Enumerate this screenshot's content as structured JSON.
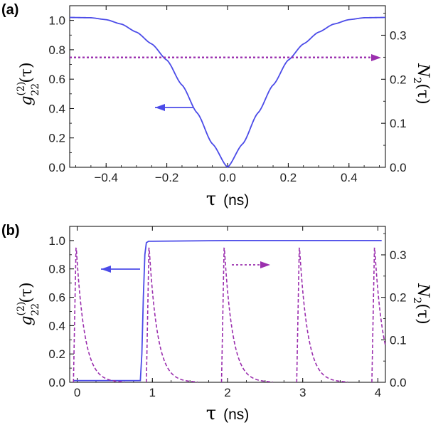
{
  "chart_data": [
    {
      "panel_label": "(a)",
      "type": "line",
      "xlabel_symbol": "τ",
      "xlabel_unit": "(ns)",
      "ylabel_left": "g(2)22(τ)",
      "ylabel_right": "N2(τ)",
      "xlim": [
        -0.52,
        0.52
      ],
      "ylim_left": [
        0,
        1.1
      ],
      "ylim_right": [
        0,
        0.367
      ],
      "xticks": [
        -0.4,
        -0.2,
        0.0,
        0.2,
        0.4
      ],
      "xtick_labels": [
        "−0.4",
        "−0.2",
        "0.0",
        "0.2",
        "0.4"
      ],
      "yticks_left": [
        0,
        0.2,
        0.4,
        0.6,
        0.8,
        1.0
      ],
      "ytick_labels_left": [
        "0.0",
        "0.2",
        "0.4",
        "0.6",
        "0.8",
        "1.0"
      ],
      "yticks_right": [
        0,
        0.1,
        0.2,
        0.3
      ],
      "ytick_labels_right": [
        "0.0",
        "0.1",
        "0.2",
        "0.3"
      ],
      "series": [
        {
          "name": "g22(τ)",
          "axis": "left",
          "style": "solid",
          "color": "#4b4be8",
          "x": [
            -0.52,
            -0.45,
            -0.4,
            -0.35,
            -0.3,
            -0.25,
            -0.2,
            -0.15,
            -0.1,
            -0.05,
            0.0,
            0.05,
            0.1,
            0.15,
            0.2,
            0.25,
            0.3,
            0.35,
            0.4,
            0.45,
            0.52
          ],
          "y": [
            1.02,
            1.018,
            1.005,
            0.975,
            0.92,
            0.84,
            0.73,
            0.56,
            0.37,
            0.16,
            0.0,
            0.16,
            0.37,
            0.56,
            0.73,
            0.84,
            0.92,
            0.975,
            1.005,
            1.018,
            1.02
          ]
        },
        {
          "name": "N2(τ)",
          "axis": "right",
          "style": "dotted",
          "color": "#9b2fae",
          "x": [
            -0.52,
            0.48
          ],
          "y": [
            0.25,
            0.25
          ]
        }
      ]
    },
    {
      "panel_label": "(b)",
      "type": "line",
      "xlabel_symbol": "τ",
      "xlabel_unit": "(ns)",
      "ylabel_left": "g(2)22(τ)",
      "ylabel_right": "N2(τ)",
      "xlim": [
        -0.1,
        4.1
      ],
      "ylim_left": [
        0,
        1.1
      ],
      "ylim_right": [
        0,
        0.367
      ],
      "xticks": [
        0,
        1,
        2,
        3,
        4
      ],
      "xtick_labels": [
        "0",
        "1",
        "2",
        "3",
        "4"
      ],
      "yticks_left": [
        0,
        0.2,
        0.4,
        0.6,
        0.8,
        1.0
      ],
      "ytick_labels_left": [
        "0.0",
        "0.2",
        "0.4",
        "0.6",
        "0.8",
        "1.0"
      ],
      "yticks_right": [
        0,
        0.1,
        0.2,
        0.3
      ],
      "ytick_labels_right": [
        "0.0",
        "0.1",
        "0.2",
        "0.3"
      ],
      "series": [
        {
          "name": "g22(τ)",
          "axis": "left",
          "style": "solid",
          "color": "#4b4be8",
          "x": [
            -0.05,
            0.84,
            0.86,
            0.88,
            0.9,
            0.92,
            0.95,
            1.0,
            2.0,
            4.05
          ],
          "y": [
            0.012,
            0.012,
            0.2,
            0.6,
            0.9,
            0.985,
            0.995,
            0.995,
            1.0,
            1.0
          ]
        },
        {
          "name": "N2(τ)",
          "axis": "right",
          "style": "dashed",
          "color": "#9b2fae",
          "pulse_starts": [
            -0.05,
            0.92,
            1.92,
            2.92,
            3.92
          ],
          "pulse_peak": 0.325,
          "decay_ns": 0.11,
          "rise_ns": 0.035
        }
      ]
    }
  ],
  "arrows": {
    "a_left_color": "#4b4be8",
    "a_right_color": "#9b2fae",
    "b_left_color": "#4b4be8",
    "b_right_color": "#9b2fae"
  }
}
